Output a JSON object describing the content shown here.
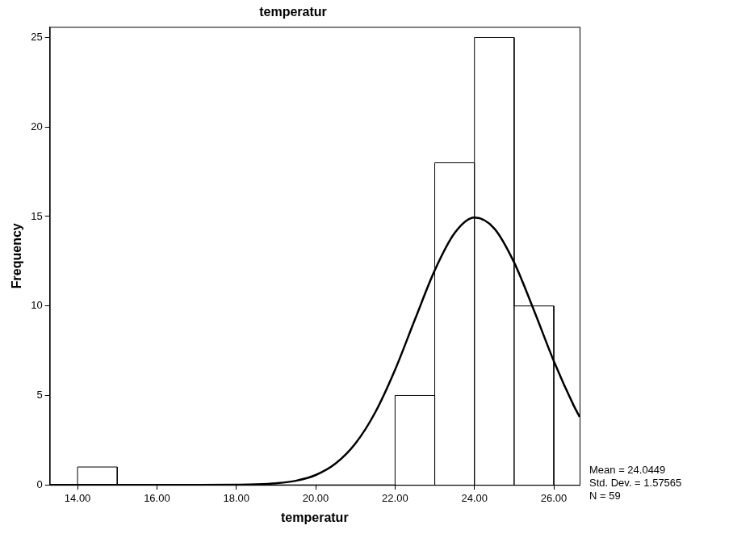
{
  "chart_data": {
    "type": "histogram",
    "title": "temperatur",
    "x_label": "temperatur",
    "y_label": "Frequency",
    "bins": [
      14,
      15,
      16,
      17,
      18,
      19,
      20,
      21,
      22,
      23,
      24,
      25,
      26
    ],
    "counts": [
      1,
      0,
      0,
      0,
      0,
      0,
      0,
      0,
      5,
      18,
      25,
      10
    ],
    "color": "#000000",
    "curve": {
      "x": [
        13.3,
        17,
        18,
        18.5,
        19,
        19.5,
        20,
        20.5,
        21,
        21.5,
        22,
        22.5,
        23,
        23.5,
        24,
        24.5,
        25,
        25.5,
        26,
        26.5,
        26.65
      ],
      "values": [
        0,
        0,
        0.01,
        0.03,
        0.09,
        0.23,
        0.55,
        1.19,
        2.31,
        4.05,
        6.43,
        9.24,
        11.99,
        14.07,
        14.94,
        14.33,
        12.43,
        9.75,
        6.92,
        4.44,
        3.8
      ],
      "color": "#000000",
      "line_style": "solid"
    },
    "xlim": [
      13.3,
      26.65
    ],
    "xticks": [
      {
        "value": 14,
        "label": "14.00"
      },
      {
        "value": 16,
        "label": "16.00"
      },
      {
        "value": 18,
        "label": "18.00"
      },
      {
        "value": 20,
        "label": "20.00"
      },
      {
        "value": 22,
        "label": "22.00"
      },
      {
        "value": 24,
        "label": "24.00"
      },
      {
        "value": 26,
        "label": "26.00"
      }
    ],
    "ylim": [
      0,
      25.6
    ],
    "yticks": [
      0,
      5,
      10,
      15,
      20,
      25
    ],
    "grid": false,
    "annotations": [
      "Mean = 24.0449",
      "Std. Dev. = 1.57565",
      "N = 59"
    ]
  }
}
